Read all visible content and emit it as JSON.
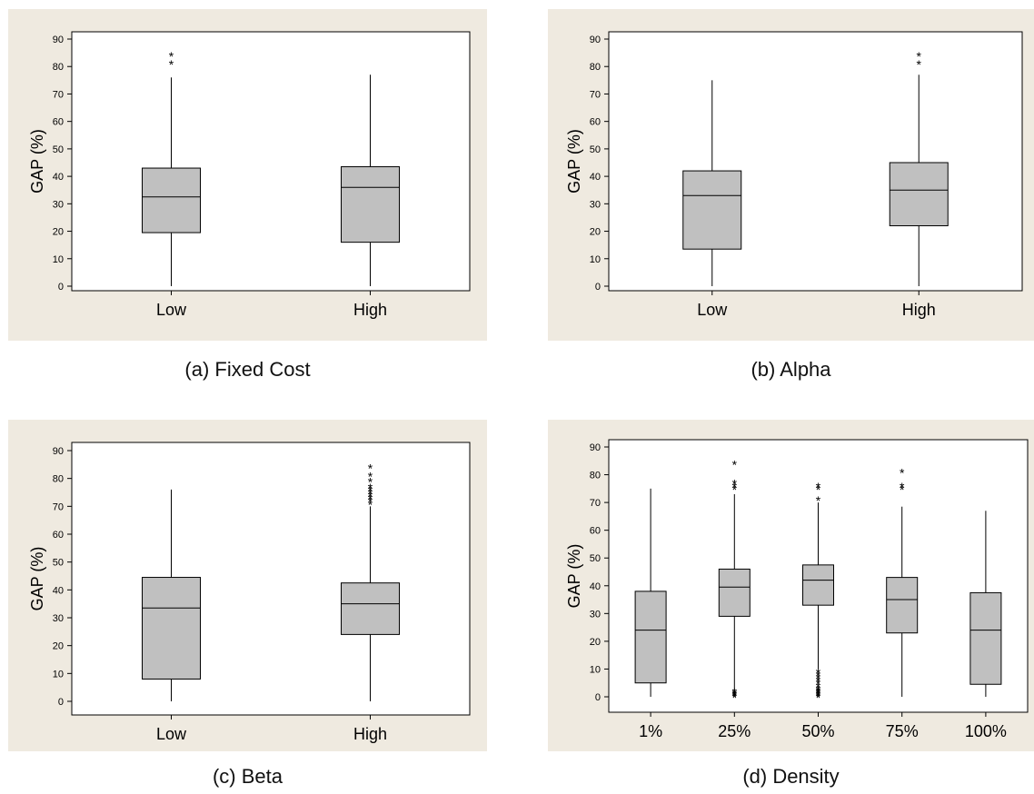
{
  "chart_data": [
    {
      "type": "boxplot",
      "caption": "(a) Fixed Cost",
      "ylabel": "GAP (%)",
      "ylim": [
        0,
        90
      ],
      "yticks": [
        "0",
        "10",
        "20",
        "30",
        "40",
        "50",
        "60",
        "70",
        "80",
        "90"
      ],
      "categories": [
        "Low",
        "High"
      ],
      "boxes": [
        {
          "min": 0,
          "q1": 19.5,
          "median": 32.5,
          "q3": 43,
          "max": 76,
          "outliers": [
            81,
            84
          ]
        },
        {
          "min": 0,
          "q1": 16,
          "median": 36,
          "q3": 43.5,
          "max": 77,
          "outliers": []
        }
      ]
    },
    {
      "type": "boxplot",
      "caption": "(b) Alpha",
      "ylabel": "GAP (%)",
      "ylim": [
        0,
        90
      ],
      "yticks": [
        "0",
        "10",
        "20",
        "30",
        "40",
        "50",
        "60",
        "70",
        "80",
        "90"
      ],
      "categories": [
        "Low",
        "High"
      ],
      "boxes": [
        {
          "min": 0,
          "q1": 13.5,
          "median": 33,
          "q3": 42,
          "max": 75,
          "outliers": []
        },
        {
          "min": 0,
          "q1": 22,
          "median": 35,
          "q3": 45,
          "max": 77,
          "outliers": [
            81,
            84
          ]
        }
      ]
    },
    {
      "type": "boxplot",
      "caption": "(c) Beta",
      "ylabel": "GAP (%)",
      "ylim": [
        0,
        90
      ],
      "yticks": [
        "0",
        "10",
        "20",
        "30",
        "40",
        "50",
        "60",
        "70",
        "80",
        "90"
      ],
      "categories": [
        "Low",
        "High"
      ],
      "boxes": [
        {
          "min": 0,
          "q1": 8,
          "median": 33.5,
          "q3": 44.5,
          "max": 76,
          "outliers": []
        },
        {
          "min": 0,
          "q1": 24,
          "median": 35,
          "q3": 42.5,
          "max": 70,
          "outliers": [
            71,
            72,
            73,
            74,
            75,
            76,
            77,
            79,
            81,
            84
          ]
        }
      ]
    },
    {
      "type": "boxplot",
      "caption": "(d) Density",
      "ylabel": "GAP (%)",
      "ylim": [
        0,
        90
      ],
      "yticks": [
        "0",
        "10",
        "20",
        "30",
        "40",
        "50",
        "60",
        "70",
        "80",
        "90"
      ],
      "categories": [
        "1%",
        "25%",
        "50%",
        "75%",
        "100%"
      ],
      "boxes": [
        {
          "min": 0,
          "q1": 5,
          "median": 24,
          "q3": 38,
          "max": 75,
          "outliers": []
        },
        {
          "min": 2,
          "q1": 29,
          "median": 39.5,
          "q3": 46,
          "max": 73,
          "outliers": [
            0,
            0.5,
            1,
            1.5,
            2,
            75,
            76,
            77,
            84
          ]
        },
        {
          "min": 10,
          "q1": 33,
          "median": 42,
          "q3": 47.5,
          "max": 70,
          "outliers": [
            0,
            0.5,
            1,
            1.5,
            2,
            2.5,
            3,
            4,
            5,
            6,
            7,
            8,
            9,
            71,
            75,
            76
          ]
        },
        {
          "min": 0,
          "q1": 23,
          "median": 35,
          "q3": 43,
          "max": 68.5,
          "outliers": [
            75,
            76,
            81
          ]
        },
        {
          "min": 0,
          "q1": 4.5,
          "median": 24,
          "q3": 37.5,
          "max": 67,
          "outliers": []
        }
      ]
    }
  ]
}
